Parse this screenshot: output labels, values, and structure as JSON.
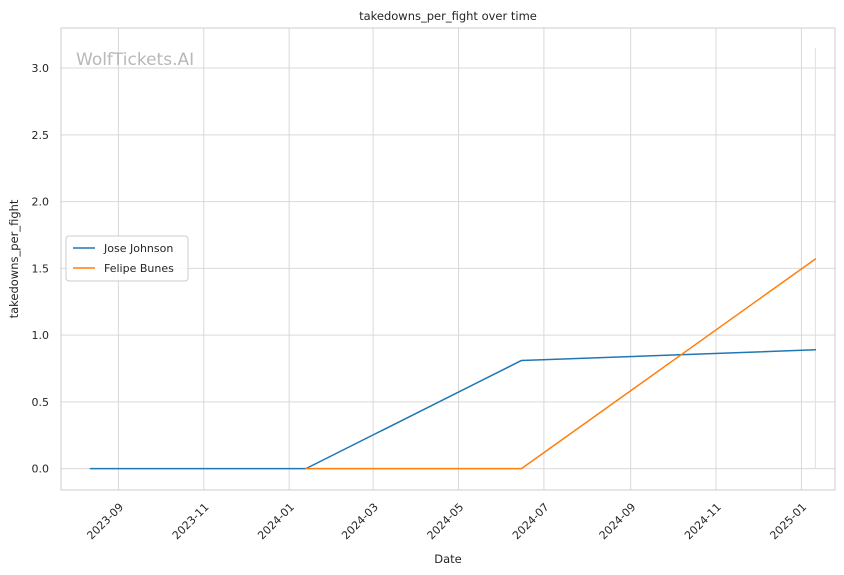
{
  "chart_data": {
    "type": "line",
    "title": "takedowns_per_fight over time",
    "xlabel": "Date",
    "ylabel": "takedowns_per_fight",
    "watermark": "WolfTickets.AI",
    "x_tick_labels": [
      "2023-09",
      "2023-11",
      "2024-01",
      "2024-03",
      "2024-05",
      "2024-07",
      "2024-09",
      "2024-11",
      "2025-01"
    ],
    "x_tick_dates": [
      "2023-09-01",
      "2023-11-01",
      "2024-01-01",
      "2024-03-01",
      "2024-05-01",
      "2024-07-01",
      "2024-09-01",
      "2024-11-01",
      "2025-01-01"
    ],
    "y_ticks": [
      0.0,
      0.5,
      1.0,
      1.5,
      2.0,
      2.5,
      3.0
    ],
    "y_tick_labels": [
      "0.0",
      "0.5",
      "1.0",
      "1.5",
      "2.0",
      "2.5",
      "3.0"
    ],
    "xlim": [
      "2023-07-22",
      "2025-01-25"
    ],
    "ylim": [
      -0.16,
      3.3
    ],
    "grid": true,
    "legend_position": "center-left",
    "series": [
      {
        "name": "Jose Johnson",
        "color": "#1f77b4",
        "x": [
          "2023-08-12",
          "2024-01-13",
          "2024-06-15",
          "2025-01-11"
        ],
        "y": [
          0.0,
          0.0,
          0.81,
          0.89
        ]
      },
      {
        "name": "Felipe Bunes",
        "color": "#ff7f0e",
        "x": [
          "2024-01-13",
          "2024-06-15",
          "2025-01-11"
        ],
        "y": [
          0.0,
          0.0,
          1.57
        ]
      }
    ],
    "vertical_marker": {
      "x": "2025-01-11",
      "y_range": [
        0.0,
        3.15
      ],
      "color": "#f5deb3"
    }
  }
}
